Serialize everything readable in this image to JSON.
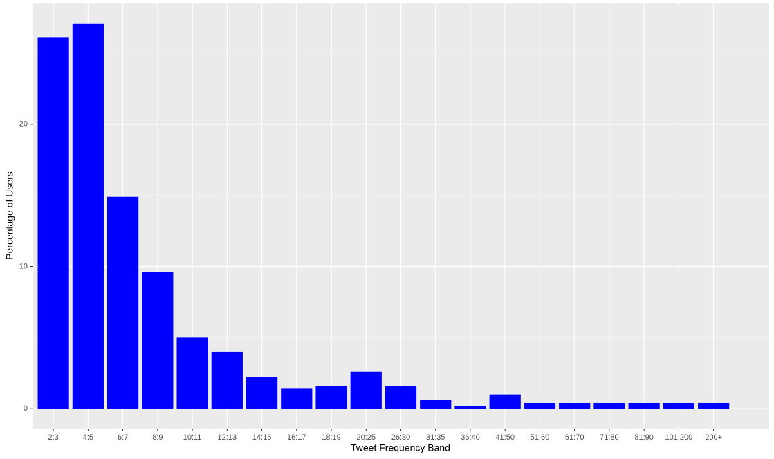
{
  "chart_data": {
    "type": "bar",
    "x_label": "Tweet Frequency Band",
    "y_label": "Percentage of Users",
    "categories": [
      "2:3",
      "4:5",
      "6:7",
      "8:9",
      "10:11",
      "12:13",
      "14:15",
      "16:17",
      "18:19",
      "20:25",
      "26:30",
      "31:35",
      "36:40",
      "41:50",
      "51:60",
      "61:70",
      "71:80",
      "81:90",
      "101:200",
      "200+"
    ],
    "values": [
      26.1,
      27.1,
      14.9,
      9.6,
      5.0,
      4.0,
      2.2,
      1.4,
      1.6,
      2.6,
      1.6,
      0.6,
      0.2,
      1.0,
      0.4,
      0.4,
      0.4,
      0.4,
      0.4,
      0.4
    ],
    "color": "#0000ff",
    "ylim": [
      -1.4,
      28.5
    ],
    "yticks": [
      0,
      10,
      20
    ],
    "grid": true
  }
}
